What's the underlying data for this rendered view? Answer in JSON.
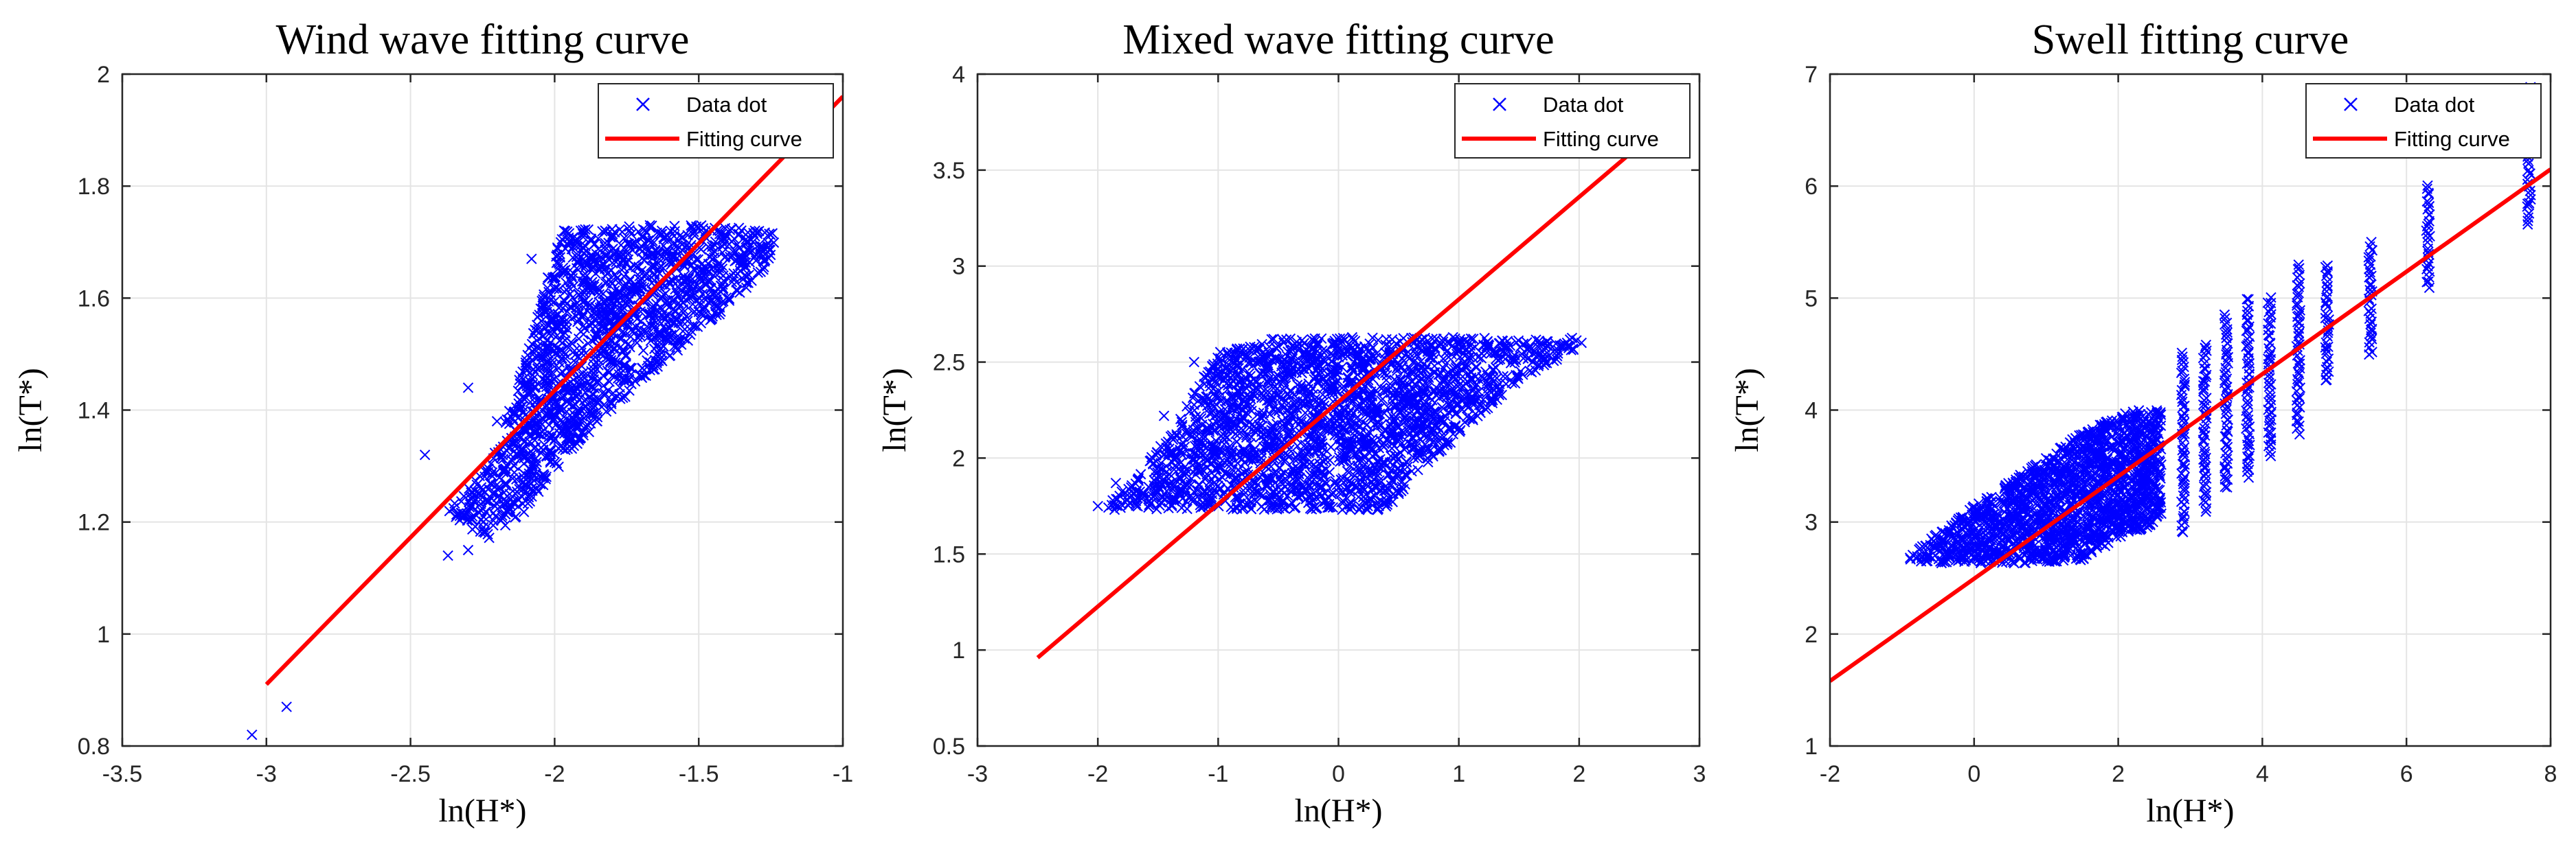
{
  "chart_data": [
    {
      "type": "scatter",
      "title": "Wind wave fitting curve",
      "xlabel": "ln(H*)",
      "ylabel": "ln(T*)",
      "xlim": [
        -3.5,
        -1
      ],
      "ylim": [
        0.8,
        2
      ],
      "xticks": [
        -3.5,
        -3,
        -2.5,
        -2,
        -1.5,
        -1
      ],
      "yticks": [
        0.8,
        1,
        1.2,
        1.4,
        1.6,
        1.8,
        2
      ],
      "xtick_labels": [
        "-3.5",
        "-3",
        "-2.5",
        "-2",
        "-1.5",
        "-1"
      ],
      "ytick_labels": [
        "0.8",
        "1",
        "1.2",
        "1.4",
        "1.6",
        "1.8",
        "2"
      ],
      "grid": true,
      "legend_position": "top-right",
      "series": [
        {
          "name": "Data dot",
          "marker": "x",
          "color": "#0000ff",
          "outliers": [
            [
              -3.05,
              0.82
            ],
            [
              -2.93,
              0.87
            ],
            [
              -2.45,
              1.32
            ],
            [
              -2.3,
              1.15
            ],
            [
              -2.37,
              1.14
            ],
            [
              -2.3,
              1.44
            ],
            [
              -2.2,
              1.38
            ],
            [
              -2.08,
              1.67
            ]
          ],
          "cluster_polygon": [
            [
              -2.38,
              1.22
            ],
            [
              -2.3,
              1.26
            ],
            [
              -2.2,
              1.33
            ],
            [
              -2.08,
              1.53
            ],
            [
              -1.98,
              1.72
            ],
            [
              -1.7,
              1.73
            ],
            [
              -1.45,
              1.73
            ],
            [
              -1.23,
              1.72
            ],
            [
              -1.25,
              1.66
            ],
            [
              -1.45,
              1.56
            ],
            [
              -1.72,
              1.44
            ],
            [
              -1.92,
              1.34
            ],
            [
              -2.1,
              1.22
            ],
            [
              -2.22,
              1.17
            ],
            [
              -2.3,
              1.19
            ]
          ]
        },
        {
          "name": "Fitting curve",
          "color": "#ff0000",
          "x": [
            -3.0,
            -1.0
          ],
          "y": [
            0.91,
            1.96
          ]
        }
      ]
    },
    {
      "type": "scatter",
      "title": "Mixed wave fitting curve",
      "xlabel": "ln(H*)",
      "ylabel": "ln(T*)",
      "xlim": [
        -3,
        3
      ],
      "ylim": [
        0.5,
        4
      ],
      "xticks": [
        -3,
        -2,
        -1,
        0,
        1,
        2,
        3
      ],
      "yticks": [
        0.5,
        1,
        1.5,
        2,
        2.5,
        3,
        3.5,
        4
      ],
      "xtick_labels": [
        "-3",
        "-2",
        "-1",
        "0",
        "1",
        "2",
        "3"
      ],
      "ytick_labels": [
        "0.5",
        "1",
        "1.5",
        "2",
        "2.5",
        "3",
        "3.5",
        "4"
      ],
      "grid": true,
      "legend_position": "top-right",
      "series": [
        {
          "name": "Data dot",
          "marker": "x",
          "color": "#0000ff",
          "outliers": [
            [
              -2.0,
              1.75
            ],
            [
              -1.85,
              1.87
            ],
            [
              -1.45,
              2.22
            ],
            [
              -1.2,
              2.5
            ],
            [
              1.9,
              2.6
            ],
            [
              2.02,
              2.6
            ]
          ],
          "cluster_polygon": [
            [
              -1.95,
              1.73
            ],
            [
              -1.4,
              2.12
            ],
            [
              -1.0,
              2.55
            ],
            [
              -0.5,
              2.63
            ],
            [
              1.0,
              2.63
            ],
            [
              2.0,
              2.63
            ],
            [
              2.0,
              2.58
            ],
            [
              1.5,
              2.4
            ],
            [
              0.7,
              1.95
            ],
            [
              0.4,
              1.73
            ],
            [
              -0.5,
              1.73
            ]
          ]
        },
        {
          "name": "Fitting curve",
          "color": "#ff0000",
          "x": [
            -2.5,
            2.6
          ],
          "y": [
            0.96,
            3.68
          ]
        }
      ]
    },
    {
      "type": "scatter",
      "title": "Swell fitting curve",
      "xlabel": "ln(H*)",
      "ylabel": "ln(T*)",
      "xlim": [
        -2,
        8
      ],
      "ylim": [
        1,
        7
      ],
      "xticks": [
        -2,
        0,
        2,
        4,
        6,
        8
      ],
      "yticks": [
        1,
        2,
        3,
        4,
        5,
        6,
        7
      ],
      "xtick_labels": [
        "-2",
        "0",
        "2",
        "4",
        "6",
        "8"
      ],
      "ytick_labels": [
        "1",
        "2",
        "3",
        "4",
        "5",
        "6",
        "7"
      ],
      "grid": true,
      "legend_position": "top-right",
      "series": [
        {
          "name": "Data dot",
          "marker": "x",
          "color": "#0000ff",
          "cluster_polygon": [
            [
              -0.95,
              2.65
            ],
            [
              -0.6,
              2.85
            ],
            [
              0.0,
              3.15
            ],
            [
              0.7,
              3.45
            ],
            [
              1.5,
              3.8
            ],
            [
              2.2,
              4.0
            ],
            [
              2.6,
              4.0
            ],
            [
              2.6,
              3.0
            ],
            [
              2.0,
              2.85
            ],
            [
              1.5,
              2.65
            ],
            [
              0.5,
              2.63
            ],
            [
              -0.5,
              2.63
            ]
          ],
          "columns": [
            {
              "x": 2.9,
              "ymin": 2.9,
              "ymax": 4.5
            },
            {
              "x": 3.2,
              "ymin": 3.1,
              "ymax": 4.6
            },
            {
              "x": 3.5,
              "ymin": 3.3,
              "ymax": 4.85
            },
            {
              "x": 3.8,
              "ymin": 3.4,
              "ymax": 5.0
            },
            {
              "x": 4.1,
              "ymin": 3.6,
              "ymax": 5.0
            },
            {
              "x": 4.5,
              "ymin": 3.8,
              "ymax": 5.3
            },
            {
              "x": 4.9,
              "ymin": 4.25,
              "ymax": 5.3
            },
            {
              "x": 5.5,
              "ymin": 4.5,
              "ymax": 5.5
            },
            {
              "x": 6.3,
              "ymin": 5.1,
              "ymax": 6.0
            },
            {
              "x": 7.7,
              "ymin": 5.65,
              "ymax": 6.9
            }
          ]
        },
        {
          "name": "Fitting curve",
          "color": "#ff0000",
          "x": [
            -2.0,
            8.0
          ],
          "y": [
            1.58,
            6.15
          ]
        }
      ]
    }
  ]
}
